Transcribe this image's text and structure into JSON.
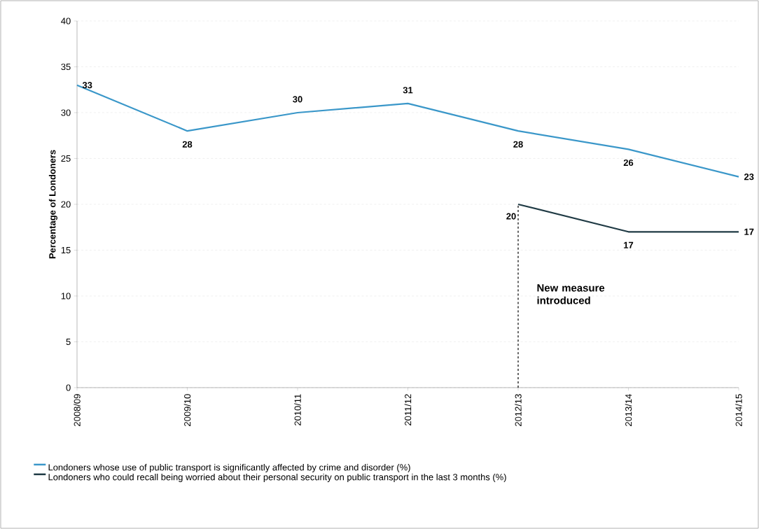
{
  "chart_data": {
    "type": "line",
    "ylabel": "Percentage of Londoners",
    "categories": [
      "2008/09",
      "2009/10",
      "2010/11",
      "2011/12",
      "2012/13",
      "2013/14",
      "2014/15"
    ],
    "series": [
      {
        "name": "Londoners whose use of public transport is significantly affected by crime and disorder (%)",
        "color": "#3a97c9",
        "values": [
          33,
          28,
          30,
          31,
          28,
          26,
          23
        ]
      },
      {
        "name": "Londoners who could recall being worried about their personal security on public transport in the last 3 months (%)",
        "color": "#1f3a44",
        "values": [
          null,
          null,
          null,
          null,
          20,
          17,
          17
        ]
      }
    ],
    "ylim": [
      0,
      40
    ],
    "yticks": [
      0,
      5,
      10,
      15,
      20,
      25,
      30,
      35,
      40
    ],
    "ref_lines": [
      {
        "axis": "x",
        "value": "2012/13",
        "label": "New measure introduced",
        "color": "#000000",
        "line_style": "dashed"
      }
    ],
    "data_labels": true,
    "grid": "y",
    "legend": "bottom",
    "marker": "none",
    "line_style": "solid"
  }
}
